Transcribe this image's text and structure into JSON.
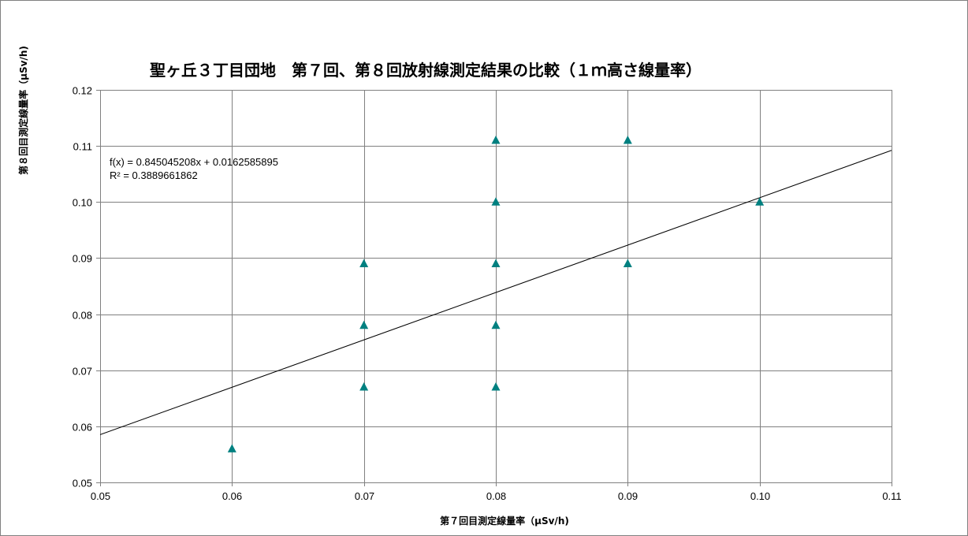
{
  "chart_data": {
    "type": "scatter",
    "title": "聖ヶ丘３丁目団地　第７回、第８回放射線測定結果の比較（１ｍ高さ線量率）",
    "xlabel": "第７回目測定線量率（μSv/h)",
    "ylabel": "第８回目測定線量率（μSv/h)",
    "xlim": [
      0.05,
      0.11
    ],
    "ylim": [
      0.05,
      0.12
    ],
    "x_ticks": [
      "0.05",
      "0.06",
      "0.07",
      "0.08",
      "0.09",
      "0.10",
      "0.11"
    ],
    "x_tick_values": [
      0.05,
      0.06,
      0.07,
      0.08,
      0.09,
      0.1,
      0.11
    ],
    "y_ticks": [
      "0.05",
      "0.06",
      "0.07",
      "0.08",
      "0.09",
      "0.10",
      "0.11",
      "0.12"
    ],
    "y_tick_values": [
      0.05,
      0.06,
      0.07,
      0.08,
      0.09,
      0.1,
      0.11,
      0.12
    ],
    "grid": true,
    "marker": "triangle",
    "marker_color": "#008080",
    "series": [
      {
        "points": [
          {
            "x": 0.06,
            "y": 0.056
          },
          {
            "x": 0.07,
            "y": 0.067
          },
          {
            "x": 0.07,
            "y": 0.078
          },
          {
            "x": 0.07,
            "y": 0.089
          },
          {
            "x": 0.08,
            "y": 0.067
          },
          {
            "x": 0.08,
            "y": 0.078
          },
          {
            "x": 0.08,
            "y": 0.089
          },
          {
            "x": 0.08,
            "y": 0.1
          },
          {
            "x": 0.08,
            "y": 0.111
          },
          {
            "x": 0.09,
            "y": 0.089
          },
          {
            "x": 0.09,
            "y": 0.111
          },
          {
            "x": 0.1,
            "y": 0.1
          }
        ]
      }
    ],
    "trendline": {
      "slope": 0.845045208,
      "intercept": 0.0162585895,
      "equation": "f(x) = 0.845045208x + 0.0162585895",
      "r_squared": "R² = 0.3889661862",
      "color": "#000000"
    }
  }
}
